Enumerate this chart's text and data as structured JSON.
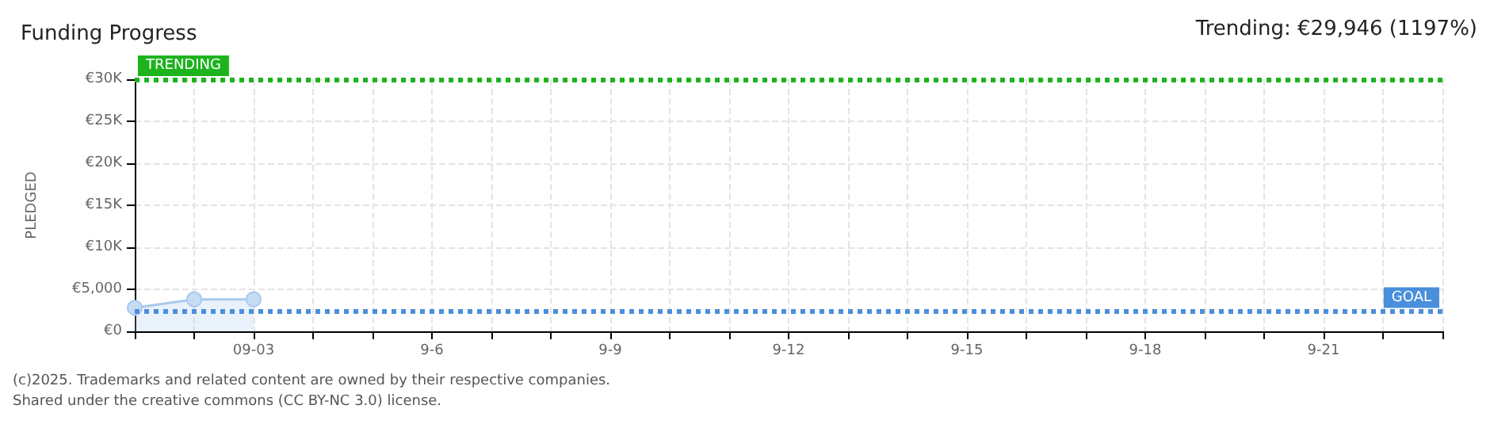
{
  "chart_data": {
    "type": "area",
    "title": "Funding Progress",
    "ylabel": "PLEDGED",
    "categories": [
      null,
      null,
      "09-03",
      null,
      null,
      "9-6",
      null,
      null,
      "9-9",
      null,
      null,
      "9-12",
      null,
      null,
      "9-15",
      null,
      null,
      "9-18",
      null,
      null,
      "9-21",
      null,
      null
    ],
    "series": [
      {
        "color": "#a9c9ef",
        "values": [
          2800,
          3800,
          3800,
          null,
          null,
          null,
          null,
          null,
          null,
          null,
          null,
          null,
          null,
          null,
          null,
          null,
          null,
          null,
          null,
          null,
          null,
          null,
          null
        ]
      }
    ],
    "ylim": [
      0,
      30000
    ],
    "yticks": [
      {
        "value": 0,
        "label": "€0"
      },
      {
        "value": 5000,
        "label": "€5,000"
      },
      {
        "value": 10000,
        "label": "€10K"
      },
      {
        "value": 15000,
        "label": "€15K"
      },
      {
        "value": 20000,
        "label": "€20K"
      },
      {
        "value": 25000,
        "label": "€25K"
      },
      {
        "value": 30000,
        "label": "€30K"
      }
    ],
    "grid": true,
    "marker": "circle",
    "ref_lines": [
      {
        "axis": "y",
        "value": 30000,
        "label": "TRENDING",
        "color": "#1db31d",
        "line_style": "dotted"
      },
      {
        "axis": "y",
        "value": 2400,
        "label": "GOAL",
        "color": "#4a8fdc",
        "line_style": "dotted"
      }
    ],
    "annotations": [
      "Trending: €29,946 (1197%)",
      "(c)2025. Trademarks and related content are owned by their respective companies.",
      "Shared under the creative commons (CC BY-NC 3.0) license."
    ]
  }
}
